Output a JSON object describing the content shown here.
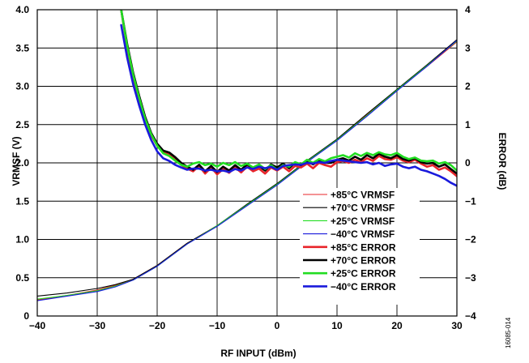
{
  "figure_id": "16085-014",
  "chart_data": {
    "type": "line",
    "xlabel": "RF INPUT (dBm)",
    "ylabel": "VRMSF (V)",
    "y2label": "ERROR (dB)",
    "xlim": [
      -40,
      30
    ],
    "ylim": [
      0,
      4.0
    ],
    "y2lim": [
      -4,
      4
    ],
    "x_ticks": [
      "−40",
      "−30",
      "−20",
      "−10",
      "0",
      "10",
      "20",
      "30"
    ],
    "y_ticks": [
      "0",
      "0.5",
      "1.0",
      "1.5",
      "2.0",
      "2.5",
      "3.0",
      "3.5",
      "4.0"
    ],
    "y2_ticks": [
      "−4",
      "−3",
      "−2",
      "−1",
      "0",
      "1",
      "2",
      "3",
      "4"
    ],
    "grid": true,
    "legend_position": "bottom-right",
    "series": [
      {
        "name": "+85°C VRMSF",
        "axis": "left",
        "color": "#e8242a",
        "width": 1.1,
        "x": [
          -40,
          -35,
          -30,
          -27,
          -24,
          -22,
          -20,
          -15,
          -10,
          -5,
          0,
          5,
          10,
          15,
          20,
          25,
          30
        ],
        "y": [
          0.21,
          0.27,
          0.34,
          0.4,
          0.48,
          0.57,
          0.66,
          0.95,
          1.18,
          1.45,
          1.72,
          2.02,
          2.3,
          2.63,
          2.95,
          3.26,
          3.58
        ]
      },
      {
        "name": "+70°C VRMSF",
        "axis": "left",
        "color": "#000000",
        "width": 1.1,
        "x": [
          -40,
          -35,
          -30,
          -27,
          -24,
          -22,
          -20,
          -15,
          -10,
          -5,
          0,
          5,
          10,
          15,
          20,
          25,
          30
        ],
        "y": [
          0.26,
          0.3,
          0.36,
          0.41,
          0.48,
          0.57,
          0.66,
          0.95,
          1.18,
          1.46,
          1.73,
          2.03,
          2.31,
          2.64,
          2.96,
          3.28,
          3.61
        ]
      },
      {
        "name": "+25°C VRMSF",
        "axis": "left",
        "color": "#22dd22",
        "width": 1.1,
        "x": [
          -40,
          -35,
          -30,
          -27,
          -24,
          -22,
          -20,
          -15,
          -10,
          -5,
          0,
          5,
          10,
          15,
          20,
          25,
          30
        ],
        "y": [
          0.22,
          0.27,
          0.33,
          0.39,
          0.47,
          0.56,
          0.65,
          0.94,
          1.18,
          1.45,
          1.72,
          2.02,
          2.3,
          2.62,
          2.95,
          3.27,
          3.59
        ]
      },
      {
        "name": "−40°C VRMSF",
        "axis": "left",
        "color": "#1a1adc",
        "width": 1.1,
        "x": [
          -40,
          -35,
          -30,
          -27,
          -24,
          -22,
          -20,
          -15,
          -10,
          -5,
          0,
          5,
          10,
          15,
          20,
          25,
          30
        ],
        "y": [
          0.2,
          0.26,
          0.32,
          0.38,
          0.47,
          0.56,
          0.65,
          0.94,
          1.17,
          1.44,
          1.71,
          2.01,
          2.29,
          2.61,
          2.94,
          3.26,
          3.6
        ]
      },
      {
        "name": "+85°C ERROR",
        "axis": "right",
        "color": "#e8242a",
        "width": 2.6,
        "x": [
          -26,
          -25,
          -24,
          -23,
          -22,
          -21,
          -20,
          -19,
          -18,
          -17,
          -16,
          -15,
          -14,
          -13,
          -12,
          -11,
          -10,
          -9,
          -8,
          -7,
          -6,
          -5,
          -4,
          -3,
          -2,
          -1,
          0,
          1,
          2,
          3,
          4,
          5,
          6,
          7,
          8,
          9,
          10,
          11,
          12,
          13,
          14,
          15,
          16,
          17,
          18,
          19,
          20,
          21,
          22,
          23,
          24,
          25,
          26,
          27,
          28,
          29,
          30
        ],
        "y": [
          4.0,
          3.0,
          2.25,
          1.65,
          1.1,
          0.72,
          0.45,
          0.28,
          0.22,
          0.1,
          -0.05,
          -0.15,
          -0.22,
          -0.08,
          -0.28,
          -0.12,
          -0.3,
          -0.16,
          -0.26,
          -0.12,
          -0.25,
          -0.1,
          -0.22,
          -0.15,
          -0.28,
          -0.12,
          -0.2,
          -0.1,
          -0.22,
          -0.08,
          -0.12,
          -0.02,
          -0.14,
          0.0,
          -0.06,
          -0.1,
          0.02,
          0.05,
          0.0,
          0.08,
          0.02,
          0.12,
          0.05,
          0.18,
          0.1,
          0.08,
          0.15,
          0.06,
          0.02,
          0.08,
          -0.02,
          -0.1,
          -0.06,
          -0.18,
          -0.12,
          -0.22,
          -0.35
        ]
      },
      {
        "name": "+70°C ERROR",
        "axis": "right",
        "color": "#000000",
        "width": 2.6,
        "x": [
          -26,
          -25,
          -24,
          -23,
          -22,
          -21,
          -20,
          -19,
          -18,
          -17,
          -16,
          -15,
          -14,
          -13,
          -12,
          -11,
          -10,
          -9,
          -8,
          -7,
          -6,
          -5,
          -4,
          -3,
          -2,
          -1,
          0,
          1,
          2,
          3,
          4,
          5,
          6,
          7,
          8,
          9,
          10,
          11,
          12,
          13,
          14,
          15,
          16,
          17,
          18,
          19,
          20,
          21,
          22,
          23,
          24,
          25,
          26,
          27,
          28,
          29,
          30
        ],
        "y": [
          4.0,
          3.1,
          2.35,
          1.75,
          1.2,
          0.78,
          0.5,
          0.32,
          0.27,
          0.15,
          0.0,
          -0.1,
          -0.18,
          -0.05,
          -0.22,
          -0.08,
          -0.24,
          -0.1,
          -0.2,
          -0.06,
          -0.18,
          -0.04,
          -0.14,
          -0.08,
          -0.2,
          -0.04,
          -0.12,
          -0.02,
          -0.14,
          0.0,
          -0.06,
          0.04,
          -0.04,
          0.06,
          0.0,
          0.0,
          0.08,
          0.12,
          0.06,
          0.16,
          0.08,
          0.2,
          0.12,
          0.24,
          0.16,
          0.12,
          0.2,
          0.1,
          0.06,
          0.12,
          0.02,
          -0.02,
          0.0,
          -0.1,
          -0.04,
          -0.16,
          -0.28
        ]
      },
      {
        "name": "+25°C ERROR",
        "axis": "right",
        "color": "#22dd22",
        "width": 2.6,
        "x": [
          -26,
          -25,
          -24,
          -23,
          -22,
          -21,
          -20,
          -19,
          -18,
          -17,
          -16,
          -15,
          -14,
          -13,
          -12,
          -11,
          -10,
          -9,
          -8,
          -7,
          -6,
          -5,
          -4,
          -3,
          -2,
          -1,
          0,
          1,
          2,
          3,
          4,
          5,
          6,
          7,
          8,
          9,
          10,
          11,
          12,
          13,
          14,
          15,
          16,
          17,
          18,
          19,
          20,
          21,
          22,
          23,
          24,
          25,
          26,
          27,
          28,
          29,
          30
        ],
        "y": [
          4.0,
          3.05,
          2.3,
          1.7,
          1.15,
          0.75,
          0.45,
          0.25,
          0.18,
          0.06,
          -0.05,
          -0.1,
          -0.02,
          0.02,
          -0.06,
          -0.02,
          -0.1,
          0.0,
          -0.06,
          0.02,
          -0.08,
          -0.02,
          -0.12,
          -0.04,
          -0.16,
          -0.06,
          -0.18,
          -0.06,
          -0.1,
          0.02,
          -0.04,
          0.08,
          0.0,
          0.1,
          0.04,
          0.12,
          0.16,
          0.2,
          0.14,
          0.25,
          0.18,
          0.26,
          0.2,
          0.28,
          0.22,
          0.2,
          0.26,
          0.16,
          0.1,
          0.14,
          0.06,
          0.04,
          0.06,
          -0.02,
          0.02,
          -0.06,
          -0.2
        ]
      },
      {
        "name": "−40°C ERROR",
        "axis": "right",
        "color": "#1a1adc",
        "width": 2.6,
        "x": [
          -26,
          -25,
          -24,
          -23,
          -22,
          -21,
          -20,
          -19,
          -18,
          -17,
          -16,
          -15,
          -14,
          -13,
          -12,
          -11,
          -10,
          -9,
          -8,
          -7,
          -6,
          -5,
          -4,
          -3,
          -2,
          -1,
          0,
          1,
          2,
          3,
          4,
          5,
          6,
          7,
          8,
          9,
          10,
          11,
          12,
          13,
          14,
          15,
          16,
          17,
          18,
          19,
          20,
          21,
          22,
          23,
          24,
          25,
          26,
          27,
          28,
          29,
          30
        ],
        "y": [
          3.6,
          2.75,
          2.05,
          1.5,
          1.0,
          0.6,
          0.3,
          0.12,
          0.05,
          -0.05,
          -0.12,
          -0.18,
          -0.15,
          -0.15,
          -0.2,
          -0.18,
          -0.22,
          -0.2,
          -0.24,
          -0.16,
          -0.2,
          -0.12,
          -0.16,
          -0.1,
          -0.14,
          -0.1,
          -0.18,
          -0.08,
          -0.06,
          -0.04,
          -0.05,
          0.0,
          -0.02,
          0.02,
          0.0,
          0.05,
          0.08,
          0.06,
          0.04,
          0.02,
          0.0,
          0.02,
          -0.04,
          0.0,
          -0.08,
          -0.04,
          -0.02,
          -0.1,
          -0.14,
          -0.1,
          -0.18,
          -0.22,
          -0.28,
          -0.34,
          -0.42,
          -0.52,
          -0.6
        ]
      }
    ]
  }
}
